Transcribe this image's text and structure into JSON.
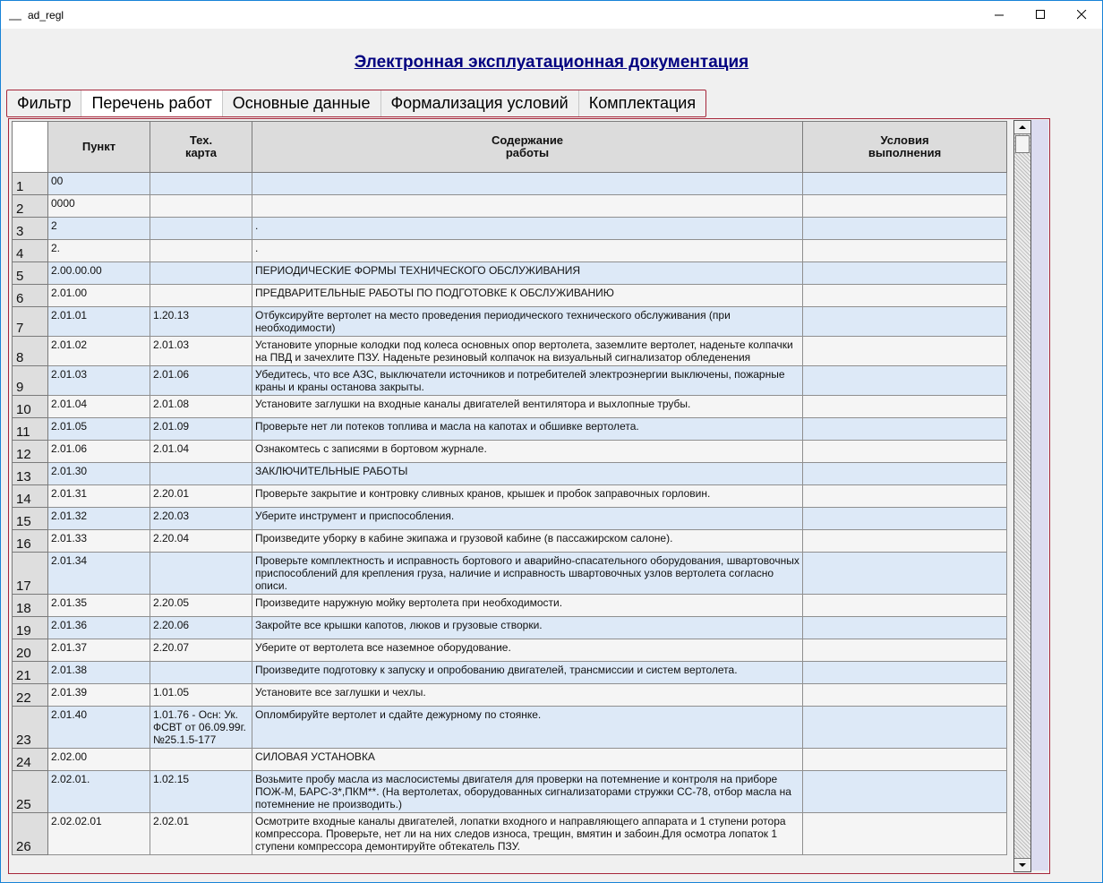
{
  "window": {
    "title": "ad_regl"
  },
  "header": {
    "title": "Электронная эксплуатационная документация"
  },
  "tabs": {
    "items": [
      "Фильтр",
      "Перечень работ",
      "Основные данные",
      "Формализация условий",
      "Комплектация"
    ],
    "active": 1
  },
  "table": {
    "columns": [
      "Пункт",
      "Тех.\nкарта",
      "Содержание\nработы",
      "Условия\nвыполнения"
    ],
    "rows": [
      [
        "1",
        "00",
        null,
        null,
        null
      ],
      [
        "2",
        "0000",
        null,
        null,
        null
      ],
      [
        "3",
        "2",
        null,
        ".",
        null
      ],
      [
        "4",
        "2.",
        null,
        ".",
        null
      ],
      [
        "5",
        "2.00.00.00",
        null,
        "ПЕРИОДИЧЕСКИЕ ФОРМЫ ТЕХНИЧЕСКОГО ОБСЛУЖИВАНИЯ",
        null
      ],
      [
        "6",
        "2.01.00",
        null,
        "ПРЕДВАРИТЕЛЬНЫЕ РАБОТЫ ПО ПОДГОТОВКЕ К ОБСЛУЖИВАНИЮ",
        null
      ],
      [
        "7",
        "2.01.01",
        "1.20.13",
        "Отбуксируйте вертолет на место проведения периодического технического обслуживания (при необходимости)",
        null
      ],
      [
        "8",
        "2.01.02",
        "2.01.03",
        "Установите упорные колодки под колеса основных опор вертолета, заземлите вертолет, наденьте колпачки на ПВД и зачехлите ПЗУ. Наденьте резиновый колпачок на визуальный сигнализатор обледенения",
        null
      ],
      [
        "9",
        "2.01.03",
        "2.01.06",
        "Убедитесь, что все АЗС, выключатели источников и потребителей электроэнергии выключены, пожарные краны и краны останова закрыты.",
        null
      ],
      [
        "10",
        "2.01.04",
        "2.01.08",
        "Установите заглушки на входные каналы двигателей вентилятора и  выхлопные трубы.",
        null
      ],
      [
        "11",
        "2.01.05",
        "2.01.09",
        "Проверьте нет ли потеков топлива и масла на капотах и обшивке вертолета.",
        null
      ],
      [
        "12",
        "2.01.06",
        "2.01.04",
        "Ознакомтесь с записями в бортовом журнале.",
        null
      ],
      [
        "13",
        "2.01.30",
        null,
        "ЗАКЛЮЧИТЕЛЬНЫЕ РАБОТЫ",
        null
      ],
      [
        "14",
        "2.01.31",
        "2.20.01",
        "Проверьте закрытие и контровку сливных кранов, крышек и пробок заправочных горловин.",
        null
      ],
      [
        "15",
        "2.01.32",
        "2.20.03",
        "Уберите инструмент и приспособления.",
        null
      ],
      [
        "16",
        "2.01.33",
        "2.20.04",
        "Произведите уборку в кабине экипажа и грузовой кабине (в пассажирском салоне).",
        null
      ],
      [
        "17",
        "2.01.34",
        null,
        "Проверьте комплектность и исправность бортового и аварийно-спасательного оборудования, швартовочных приспособлений для крепления груза, наличие и исправность швартовочных узлов вертолета согласно описи.",
        null
      ],
      [
        "18",
        "2.01.35",
        "2.20.05",
        "Произведите наружную мойку вертолета при необходимости.",
        null
      ],
      [
        "19",
        "2.01.36",
        "2.20.06",
        "Закройте все крышки капотов, люков и грузовые створки.",
        null
      ],
      [
        "20",
        "2.01.37",
        "2.20.07",
        "Уберите от вертолета все наземное оборудование.",
        null
      ],
      [
        "21",
        "2.01.38",
        null,
        "Произведите подготовку к запуску и опробованию двигателей, трансмиссии и систем вертолета.",
        null
      ],
      [
        "22",
        "2.01.39",
        "1.01.05",
        "Установите все заглушки и чехлы.",
        null
      ],
      [
        "23",
        "2.01.40",
        "1.01.76 - Осн: Ук. ФСВТ от 06.09.99г. №25.1.5-177",
        "Опломбируйте вертолет и сдайте дежурному по стоянке.",
        null
      ],
      [
        "24",
        "2.02.00",
        null,
        "СИЛОВАЯ УСТАНОВКА",
        null
      ],
      [
        "25",
        "2.02.01.",
        "1.02.15",
        "Возьмите пробу масла из маслосистемы двигателя для проверки на потемнение и контроля на приборе ПОЖ-М, БАРС-3*,ПКМ**. (На вертолетах, оборудованных сигнализаторами стружки СС-78, отбор масла на потемнение не производить.)",
        null
      ],
      [
        "26",
        "2.02.02.01",
        "2.02.01",
        "Осмотрите входные каналы двигателей, лопатки входного и направляющего аппарата и 1 ступени ротора компрессора. Проверьте, нет ли на них следов износа, трещин, вмятин и забоин.Для осмотра лопаток 1 ступени компрессора демонтируйте обтекатель ПЗУ.",
        null
      ]
    ]
  }
}
